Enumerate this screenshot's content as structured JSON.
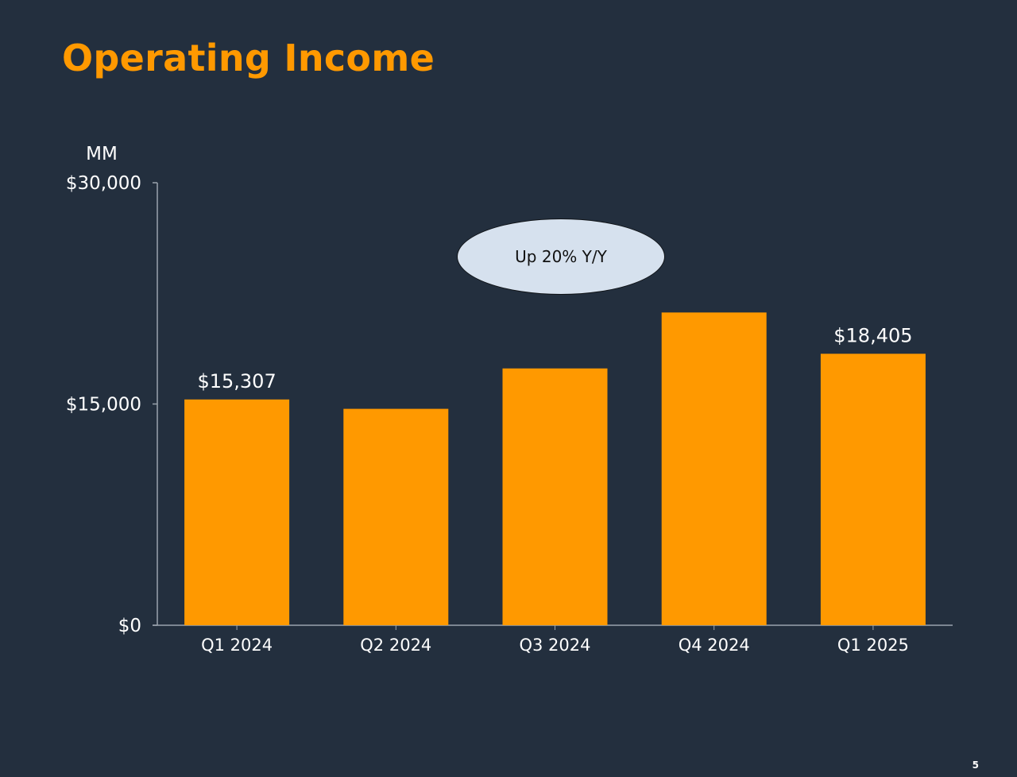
{
  "slide": {
    "title": "Operating Income",
    "page_number": "5",
    "callout": "Up 20% Y/Y",
    "background_color": "#232f3e",
    "accent_color": "#ff9900"
  },
  "chart_data": {
    "type": "bar",
    "title": "Operating Income",
    "ylabel": "MM",
    "xlabel": "",
    "categories": [
      "Q1 2024",
      "Q2 2024",
      "Q3 2024",
      "Q4 2024",
      "Q1 2025"
    ],
    "values": [
      15307,
      14672,
      17411,
      21203,
      18405
    ],
    "data_labels": [
      "$15,307",
      "",
      "",
      "",
      "$18,405"
    ],
    "ylim": [
      0,
      30000
    ],
    "yticks": [
      0,
      15000,
      30000
    ],
    "ytick_labels": [
      "$0",
      "$15,000",
      "$30,000"
    ],
    "bar_color": "#ff9900",
    "grid": false,
    "legend": "none"
  }
}
